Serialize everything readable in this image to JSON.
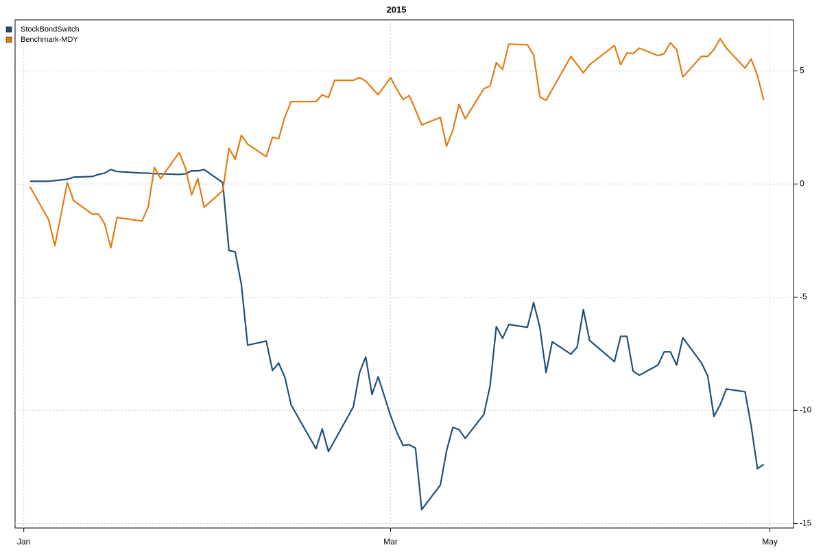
{
  "chart_data": {
    "type": "line",
    "title": "2015",
    "x": [
      1,
      4,
      5,
      7,
      8,
      11,
      12,
      13,
      14,
      15,
      19,
      20,
      21,
      22,
      25,
      26,
      27,
      28,
      29,
      32,
      33,
      34,
      35,
      36,
      39,
      40,
      41,
      42,
      43,
      47,
      48,
      49,
      50,
      53,
      54,
      55,
      56,
      57,
      59,
      60,
      61,
      62,
      63,
      64,
      67,
      68,
      69,
      70,
      71,
      74,
      75,
      76,
      77,
      78,
      81,
      82,
      83,
      84,
      85,
      88,
      89,
      90,
      91,
      95,
      96,
      97,
      98,
      99,
      102,
      103,
      104,
      105,
      106,
      109,
      110,
      111,
      112,
      113,
      116,
      117,
      118,
      119
    ],
    "series": [
      {
        "name": "StockBondSwitch",
        "color": "#1f4e79",
        "values": [
          0.12,
          0.12,
          0.15,
          0.21,
          0.3,
          0.33,
          0.42,
          0.48,
          0.64,
          0.55,
          0.48,
          0.48,
          0.45,
          0.45,
          0.42,
          0.45,
          0.58,
          0.58,
          0.64,
          0.06,
          -2.94,
          -3.0,
          -4.45,
          -7.12,
          -6.94,
          -8.24,
          -7.91,
          -8.55,
          -9.76,
          -11.7,
          -10.82,
          -11.82,
          -11.33,
          -9.85,
          -8.33,
          -7.64,
          -9.3,
          -8.52,
          -10.24,
          -10.97,
          -11.55,
          -11.52,
          -11.67,
          -14.39,
          -13.3,
          -11.79,
          -10.76,
          -10.85,
          -11.24,
          -10.18,
          -8.91,
          -6.3,
          -6.82,
          -6.21,
          -6.33,
          -5.24,
          -6.33,
          -8.33,
          -6.97,
          -7.52,
          -7.21,
          -5.55,
          -6.91,
          -7.85,
          -6.73,
          -6.73,
          -8.27,
          -8.45,
          -8.0,
          -7.42,
          -7.42,
          -8.0,
          -6.79,
          -7.91,
          -8.48,
          -10.27,
          -9.76,
          -9.06,
          -9.18,
          -10.7,
          -12.58,
          -12.39
        ]
      },
      {
        "name": "Benchmark-MDY",
        "color": "#e07b10",
        "values": [
          -0.12,
          -1.58,
          -2.73,
          0.06,
          -0.73,
          -1.33,
          -1.33,
          -1.76,
          -2.82,
          -1.48,
          -1.64,
          -1.03,
          0.73,
          0.24,
          1.39,
          0.7,
          -0.48,
          0.24,
          -1.03,
          -0.3,
          1.58,
          1.09,
          2.15,
          1.76,
          1.21,
          2.06,
          2.0,
          2.97,
          3.64,
          3.64,
          3.94,
          3.82,
          4.58,
          4.58,
          4.7,
          4.55,
          4.24,
          3.94,
          4.7,
          4.18,
          3.73,
          3.91,
          3.27,
          2.61,
          2.94,
          1.67,
          2.36,
          3.52,
          2.88,
          4.21,
          4.33,
          5.36,
          5.06,
          6.18,
          6.15,
          5.7,
          3.85,
          3.7,
          4.18,
          5.64,
          5.27,
          4.91,
          5.27,
          6.12,
          5.27,
          5.79,
          5.76,
          6.0,
          5.67,
          5.76,
          6.24,
          5.94,
          4.73,
          5.64,
          5.64,
          5.94,
          6.42,
          6.0,
          5.12,
          5.52,
          4.79,
          3.7
        ]
      }
    ],
    "xlim": [
      -1.4,
      123.8
    ],
    "xticks": [
      {
        "value": 0,
        "label": "Jan"
      },
      {
        "value": 59,
        "label": "Mar"
      },
      {
        "value": 120,
        "label": "May"
      }
    ],
    "ylim": [
      -15.2,
      7.25
    ],
    "yticks": [
      5,
      0,
      -5,
      -10,
      -15
    ],
    "grid": true,
    "legend": "top-left"
  }
}
